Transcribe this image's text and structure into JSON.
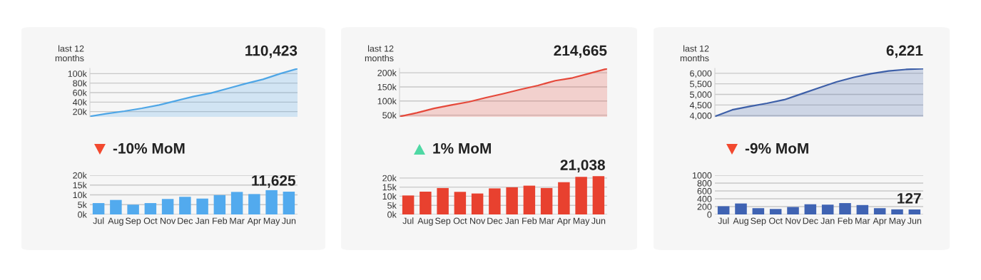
{
  "chart_data": [
    {
      "type": "area",
      "ylabel": "last 12 months",
      "categories": [
        null,
        null,
        null,
        null,
        null,
        null,
        null,
        null,
        null,
        null,
        null,
        null,
        null
      ],
      "color": "#4ea6e6",
      "values": [
        10000,
        16000,
        21000,
        27000,
        34000,
        43000,
        52000,
        59000,
        69000,
        79000,
        88000,
        100000,
        110423
      ],
      "value_labels": [
        null,
        null,
        null,
        null,
        null,
        null,
        null,
        null,
        null,
        null,
        null,
        null,
        "110,423"
      ],
      "ylim": [
        9000,
        111000
      ],
      "yticks": [
        {
          "value": 20000,
          "label": "20k"
        },
        {
          "value": 40000,
          "label": "40k"
        },
        {
          "value": 60000,
          "label": "60k"
        },
        {
          "value": 80000,
          "label": "80k"
        },
        {
          "value": 100000,
          "label": "100k"
        }
      ],
      "grid": "y"
    },
    {
      "type": "area",
      "ylabel": "last 12 months",
      "categories": [
        null,
        null,
        null,
        null,
        null,
        null,
        null,
        null,
        null,
        null,
        null,
        null,
        null
      ],
      "color": "#e5483a",
      "values": [
        45000,
        58000,
        74000,
        86000,
        97000,
        112000,
        126000,
        141000,
        155000,
        172000,
        182000,
        198000,
        214665
      ],
      "value_labels": [
        null,
        null,
        null,
        null,
        null,
        null,
        null,
        null,
        null,
        null,
        null,
        null,
        "214,665"
      ],
      "ylim": [
        44000,
        215500
      ],
      "yticks": [
        {
          "value": 50000,
          "label": "50k"
        },
        {
          "value": 100000,
          "label": "100k"
        },
        {
          "value": 150000,
          "label": "150k"
        },
        {
          "value": 200000,
          "label": "200k"
        }
      ],
      "grid": "y"
    },
    {
      "type": "area",
      "ylabel": "last 12 months",
      "categories": [
        null,
        null,
        null,
        null,
        null,
        null,
        null,
        null,
        null,
        null,
        null,
        null,
        null
      ],
      "color": "#3d5fa8",
      "values": [
        3960,
        4270,
        4430,
        4580,
        4750,
        5030,
        5310,
        5590,
        5810,
        5980,
        6110,
        6180,
        6221
      ],
      "value_labels": [
        null,
        null,
        null,
        null,
        null,
        null,
        null,
        null,
        null,
        null,
        null,
        null,
        "6,221"
      ],
      "ylim": [
        3940,
        6230
      ],
      "yticks": [
        {
          "value": 4000,
          "label": "4,000"
        },
        {
          "value": 4500,
          "label": "4,500"
        },
        {
          "value": 5000,
          "label": "5,000"
        },
        {
          "value": 5500,
          "label": "5,500"
        },
        {
          "value": 6000,
          "label": "6,000"
        }
      ],
      "grid": "y"
    },
    {
      "type": "bar",
      "title": "-10% MoM",
      "categories": [
        "Jul",
        "Aug",
        "Sep",
        "Oct",
        "Nov",
        "Dec",
        "Jan",
        "Feb",
        "Mar",
        "Apr",
        "May",
        "Jun"
      ],
      "color": "#52aaee",
      "values": [
        5800,
        7400,
        5000,
        5800,
        7900,
        9000,
        8100,
        9900,
        11500,
        10400,
        12400,
        11625
      ],
      "value_labels": [
        null,
        null,
        null,
        null,
        null,
        null,
        null,
        null,
        null,
        null,
        null,
        "11,625"
      ],
      "ylim": [
        0,
        20000
      ],
      "yticks": [
        {
          "value": 0,
          "label": "0k"
        },
        {
          "value": 5000,
          "label": "5k"
        },
        {
          "value": 10000,
          "label": "10k"
        },
        {
          "value": 15000,
          "label": "15k"
        },
        {
          "value": 20000,
          "label": "20k"
        }
      ],
      "grid": "y"
    },
    {
      "type": "bar",
      "title": "1% MoM",
      "categories": [
        "Jul",
        "Aug",
        "Sep",
        "Oct",
        "Nov",
        "Dec",
        "Jan",
        "Feb",
        "Mar",
        "Apr",
        "May",
        "Jun"
      ],
      "color": "#e8412f",
      "values": [
        10400,
        12500,
        14500,
        12400,
        11500,
        14300,
        14900,
        15800,
        14500,
        17700,
        20600,
        21038
      ],
      "value_labels": [
        null,
        null,
        null,
        null,
        null,
        null,
        null,
        null,
        null,
        null,
        null,
        "21,038"
      ],
      "ylim": [
        0,
        21500
      ],
      "yticks": [
        {
          "value": 0,
          "label": "0k"
        },
        {
          "value": 5000,
          "label": "5k"
        },
        {
          "value": 10000,
          "label": "10k"
        },
        {
          "value": 15000,
          "label": "15k"
        },
        {
          "value": 20000,
          "label": "20k"
        }
      ],
      "grid": "y"
    },
    {
      "type": "bar",
      "title": "-9% MoM",
      "categories": [
        "Jul",
        "Aug",
        "Sep",
        "Oct",
        "Nov",
        "Dec",
        "Jan",
        "Feb",
        "Mar",
        "Apr",
        "May",
        "Jun"
      ],
      "color": "#3f63b3",
      "values": [
        210,
        280,
        160,
        140,
        190,
        260,
        250,
        290,
        240,
        160,
        130,
        127
      ],
      "value_labels": [
        null,
        null,
        null,
        null,
        null,
        null,
        null,
        null,
        null,
        null,
        null,
        "127"
      ],
      "ylim": [
        0,
        1000
      ],
      "yticks": [
        0,
        200,
        400,
        600,
        800,
        1000
      ],
      "grid": "y"
    }
  ]
}
